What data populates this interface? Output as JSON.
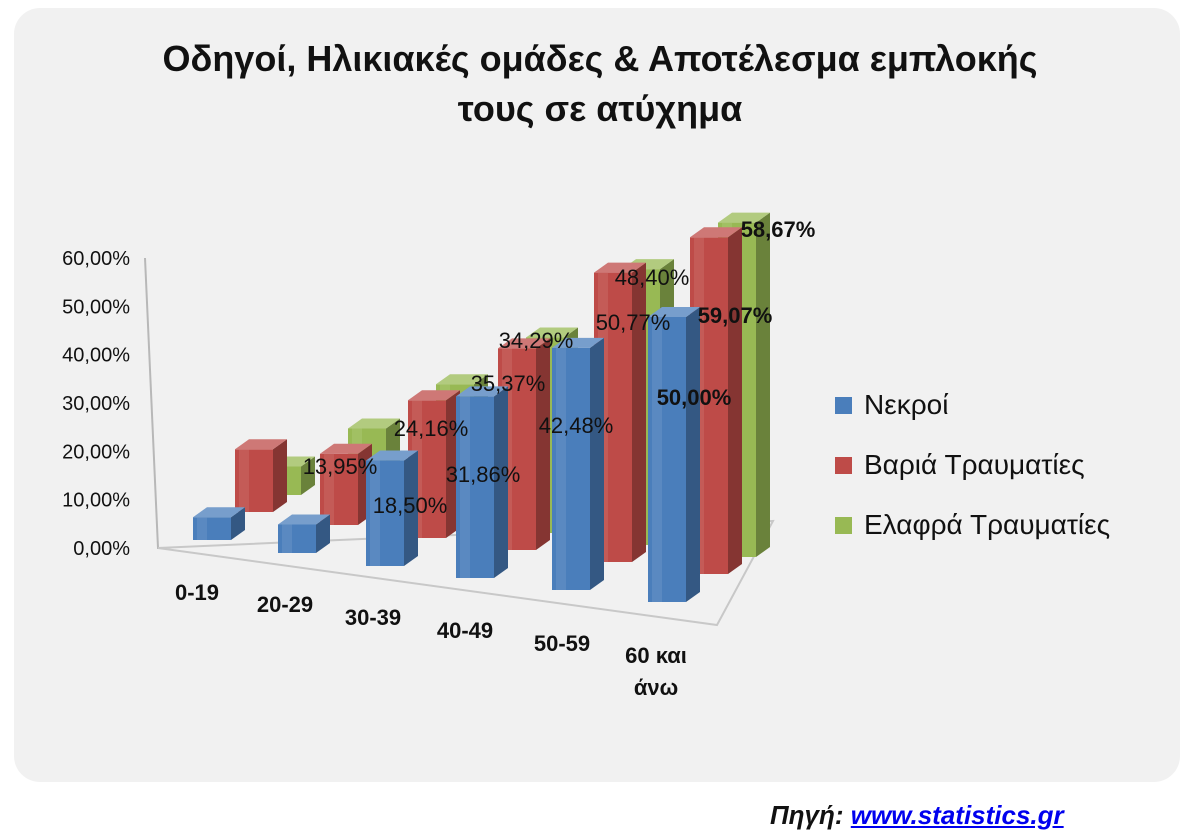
{
  "chart_data": {
    "type": "bar",
    "title_line1": "Οδηγοί, Ηλικιακές ομάδες & Αποτέλεσμα εμπλοκής",
    "title_line2": "τους σε ατύχημα",
    "categories": [
      "0-19",
      "20-29",
      "30-39",
      "40-49",
      "50-59",
      "60 και άνω"
    ],
    "yticks": [
      "60,00%",
      "50,00%",
      "40,00%",
      "30,00%",
      "20,00%",
      "10,00%",
      "0,00%"
    ],
    "ylim": [
      0,
      60
    ],
    "series": [
      {
        "name": "Νεκροί",
        "color": "#4a7ebb",
        "values": [
          4.0,
          5.0,
          18.5,
          31.86,
          42.48,
          50.0
        ],
        "labels": [
          "",
          "",
          "18,50%",
          "31,86%",
          "42,48%",
          "50,00%"
        ]
      },
      {
        "name": "Βαριά Τραυματίες",
        "color": "#be4b48",
        "values": [
          11.0,
          12.5,
          24.16,
          35.37,
          50.77,
          59.07
        ],
        "labels": [
          "",
          "",
          "24,16%",
          "35,37%",
          "50,77%",
          "59,07%"
        ]
      },
      {
        "name": "Ελαφρά Τραυματίες",
        "color": "#98b954",
        "values": [
          5.0,
          13.95,
          24.0,
          34.29,
          48.4,
          58.67
        ],
        "labels": [
          "",
          "13,95%",
          "",
          "34,29%",
          "48,40%",
          "58,67%"
        ]
      }
    ],
    "legend_position": "right"
  },
  "source": {
    "label": "Πηγή:",
    "link": "www.statistics.gr"
  }
}
